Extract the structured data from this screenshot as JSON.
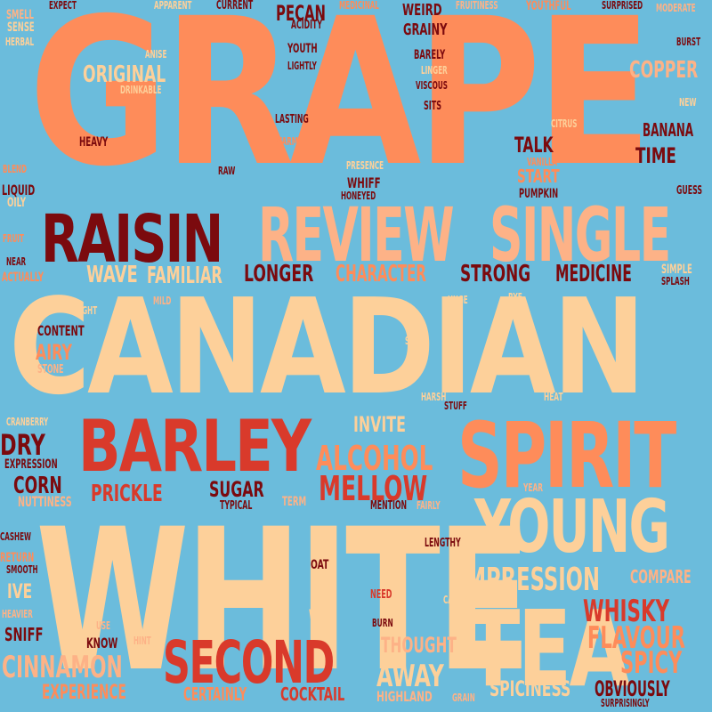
{
  "palette": {
    "background": "#6bbcdc",
    "dark_red": "#7b0a0e",
    "red": "#d93a2b",
    "orange": "#fe8c5a",
    "salmon": "#fdb287",
    "peach": "#fdd09a"
  },
  "words": {
    "grape": "GRAPE",
    "canadian": "CANADIAN",
    "white": "WHITE",
    "barley": "BARLEY",
    "spirit": "SPIRIT",
    "young": "YOUNG",
    "tea": "TEA",
    "raisin": "RAISIN",
    "review": "REVIEW",
    "single": "SINGLE",
    "second": "SECOND",
    "alcohol": "ALCOHOL",
    "mellow": "MELLOW",
    "impression": "IMPRESSION",
    "whisky": "WHISKY",
    "flavour": "FLAVOUR",
    "spicy": "SPICY",
    "cinnamon": "CINNAMON",
    "experience": "EXPERIENCE",
    "certainly": "CERTAINLY",
    "cocktail": "COCKTAIL",
    "highland": "HIGHLAND",
    "grain": "GRAIN",
    "spiciness": "SPICINESS",
    "obviously": "OBVIOUSLY",
    "surprisingly": "SURPRISINGLY",
    "away": "AWAY",
    "thought": "THOUGHT",
    "sugar": "SUGAR",
    "prickle": "PRICKLE",
    "corn": "CORN",
    "dry": "DRY",
    "expression": "EXPRESSION",
    "cranberry": "CRANBERRY",
    "nuttiness": "NUTTINESS",
    "typical": "TYPICAL",
    "term": "TERM",
    "mention": "MENTION",
    "fairly": "FAIRLY",
    "invite": "INVITE",
    "harsh": "HARSH",
    "stuff": "STUFF",
    "heat": "HEAT",
    "year": "YEAR",
    "lengthy": "LENGTHY",
    "compare": "COMPARE",
    "oat": "OAT",
    "need": "NEED",
    "caramel": "CARAMEL",
    "wish": "WISH",
    "burn": "BURN",
    "cashew": "CASHEW",
    "smooth": "SMOOTH",
    "return": "RETURN",
    "ive": "IVE",
    "heavier": "HEAVIER",
    "sniff": "SNIFF",
    "know": "KNOW",
    "use": "USE",
    "hint": "HINT",
    "light": "LIGHT",
    "content": "CONTENT",
    "airy": "AIRY",
    "stone": "STONE",
    "spice": "SPICE",
    "huge": "HUGE",
    "rye": "RYE",
    "mild": "MILD",
    "wave": "WAVE",
    "familiar": "FAMILIAR",
    "longer": "LONGER",
    "character": "CHARACTER",
    "strong": "STRONG",
    "medicine": "MEDICINE",
    "simple": "SIMPLE",
    "splash": "SPLASH",
    "near": "NEAR",
    "actually": "ACTUALLY",
    "fruit": "FRUIT",
    "liquid": "LIQUID",
    "oily": "OILY",
    "blend": "BLEND",
    "raw": "RAW",
    "presence": "PRESENCE",
    "whiff": "WHIFF",
    "honeyed": "HONEYED",
    "start": "START",
    "pumpkin": "PUMPKIN",
    "vanilla": "VANILLA",
    "talk": "TALK",
    "time": "TIME",
    "banana": "BANANA",
    "guess": "GUESS",
    "citrus": "CITRUS",
    "new": "NEW",
    "heavy": "HEAVY",
    "lasting": "LASTING",
    "warm": "WARM",
    "sits": "SITS",
    "viscous": "VISCOUS",
    "linger": "LINGER",
    "barely": "BARELY",
    "grainy": "GRAINY",
    "weird": "WEIRD",
    "pecan": "PECAN",
    "acidity": "ACIDITY",
    "youth": "YOUTH",
    "lightly": "LIGHTLY",
    "anise": "ANISE",
    "original": "ORIGINAL",
    "drinkable": "DRINKABLE",
    "copper": "COPPER",
    "burst": "BURST",
    "moderate": "MODERATE",
    "surprised": "SURPRISED",
    "youthful": "YOUTHFUL",
    "fruitiness": "FRUITINESS",
    "medicinal": "MEDICINAL",
    "current": "CURRENT",
    "apparent": "APPARENT",
    "expect": "EXPECT",
    "smell": "SMELL",
    "sense": "SENSE",
    "herbal": "HERBAL"
  }
}
